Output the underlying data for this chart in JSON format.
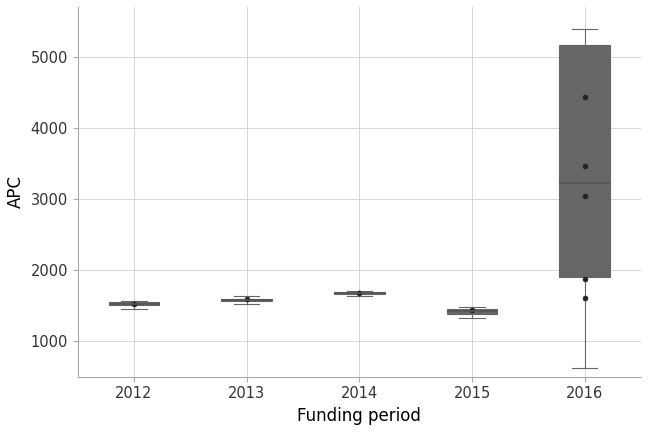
{
  "years": [
    2012,
    2013,
    2014,
    2015,
    2016
  ],
  "box_data": {
    "2012": {
      "whislo": 1450,
      "q1": 1510,
      "med": 1530,
      "q3": 1545,
      "whishi": 1570,
      "fliers": [
        1530
      ]
    },
    "2013": {
      "whislo": 1520,
      "q1": 1560,
      "med": 1585,
      "q3": 1600,
      "whishi": 1640,
      "fliers": [
        1590
      ]
    },
    "2014": {
      "whislo": 1630,
      "q1": 1660,
      "med": 1675,
      "q3": 1685,
      "whishi": 1710,
      "fliers": [
        1680
      ]
    },
    "2015": {
      "whislo": 1330,
      "q1": 1380,
      "med": 1425,
      "q3": 1450,
      "whishi": 1475,
      "fliers": [
        1445
      ]
    },
    "2016": {
      "whislo": 620,
      "q1": 1900,
      "med": 3220,
      "q3": 5170,
      "whishi": 5390,
      "fliers": [
        4430,
        3470,
        3040,
        1880,
        1610
      ]
    }
  },
  "ylabel": "APC",
  "xlabel": "Funding period",
  "ylim": [
    500,
    5700
  ],
  "yticks": [
    1000,
    2000,
    3000,
    4000,
    5000
  ],
  "background_color": "#ffffff",
  "grid_color": "#d0d0d0",
  "box_color": "#ffffff",
  "box_edge_color": "#666666",
  "median_color": "#555555",
  "whisker_color": "#666666",
  "flier_color": "#222222",
  "box_width": 0.45,
  "label_fontsize": 12,
  "tick_fontsize": 10.5
}
